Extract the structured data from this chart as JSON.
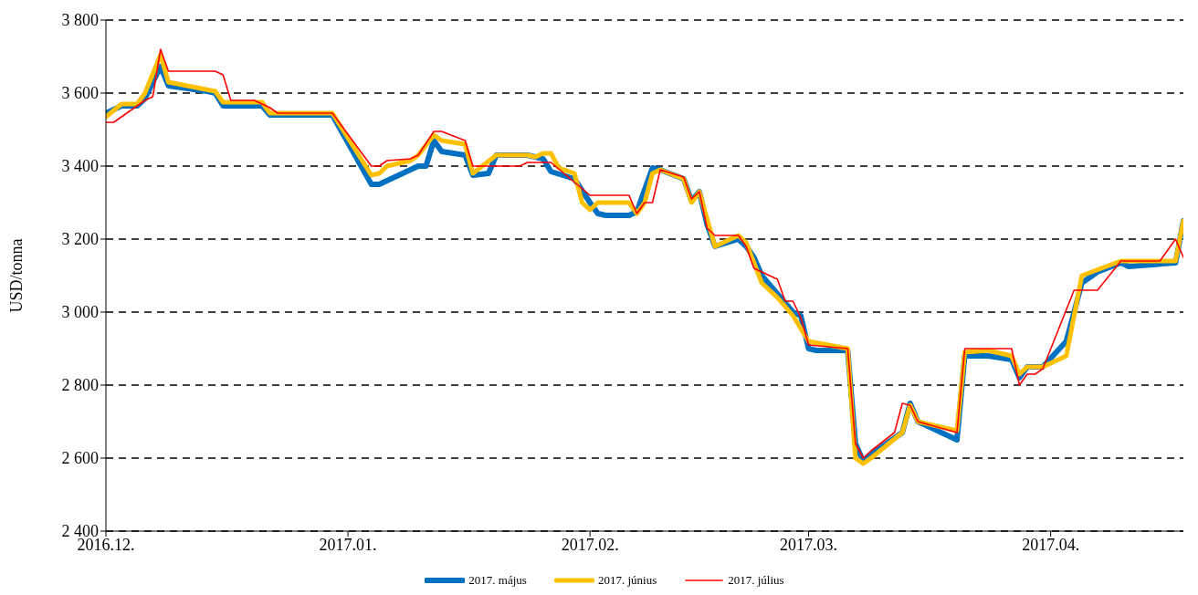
{
  "chart_data": {
    "type": "line",
    "ylabel": "USD/tonna",
    "xlim": [
      "2016-12-01",
      "2017-04-18"
    ],
    "xticks": [
      {
        "value": "2016-12-01",
        "label": "2016.12."
      },
      {
        "value": "2017-01-01",
        "label": "2017.01."
      },
      {
        "value": "2017-02-01",
        "label": "2017.02."
      },
      {
        "value": "2017-03-01",
        "label": "2017.03."
      },
      {
        "value": "2017-04-01",
        "label": "2017.04."
      }
    ],
    "ylim": [
      2400,
      3800
    ],
    "yticks": [
      {
        "value": 2400,
        "label": "2 400"
      },
      {
        "value": 2600,
        "label": "2 600"
      },
      {
        "value": 2800,
        "label": "2 800"
      },
      {
        "value": 3000,
        "label": "3 000"
      },
      {
        "value": 3200,
        "label": "3 200"
      },
      {
        "value": 3400,
        "label": "3 400"
      },
      {
        "value": 3600,
        "label": "3 600"
      },
      {
        "value": 3800,
        "label": "3 800"
      }
    ],
    "grid": "y",
    "legend": "bottom",
    "marker": "none",
    "series": [
      {
        "name": "2017. május",
        "color": "#0070c0",
        "x": [
          "2016-12-01",
          "2016-12-03",
          "2016-12-05",
          "2016-12-06",
          "2016-12-08",
          "2016-12-09",
          "2016-12-14",
          "2016-12-15",
          "2016-12-16",
          "2016-12-21",
          "2016-12-22",
          "2016-12-30",
          "2017-01-04",
          "2017-01-05",
          "2017-01-07",
          "2017-01-10",
          "2017-01-11",
          "2017-01-12",
          "2017-01-13",
          "2017-01-16",
          "2017-01-17",
          "2017-01-19",
          "2017-01-20",
          "2017-01-24",
          "2017-01-26",
          "2017-01-27",
          "2017-01-30",
          "2017-02-01",
          "2017-02-02",
          "2017-02-03",
          "2017-02-06",
          "2017-02-07",
          "2017-02-09",
          "2017-02-10",
          "2017-02-13",
          "2017-02-14",
          "2017-02-15",
          "2017-02-16",
          "2017-02-17",
          "2017-02-20",
          "2017-02-21",
          "2017-02-22",
          "2017-02-23",
          "2017-02-25",
          "2017-02-27",
          "2017-02-28",
          "2017-03-01",
          "2017-03-02",
          "2017-03-06",
          "2017-03-07",
          "2017-03-08",
          "2017-03-09",
          "2017-03-13",
          "2017-03-14",
          "2017-03-15",
          "2017-03-20",
          "2017-03-21",
          "2017-03-24",
          "2017-03-27",
          "2017-03-28",
          "2017-03-29",
          "2017-03-31",
          "2017-04-03",
          "2017-04-05",
          "2017-04-07",
          "2017-04-10",
          "2017-04-11",
          "2017-04-17",
          "2017-04-18"
        ],
        "values": [
          3545,
          3565,
          3565,
          3585,
          3673,
          3620,
          3605,
          3600,
          3565,
          3565,
          3540,
          3540,
          3350,
          3350,
          3370,
          3400,
          3400,
          3470,
          3440,
          3430,
          3375,
          3380,
          3430,
          3430,
          3420,
          3385,
          3365,
          3300,
          3270,
          3265,
          3265,
          3275,
          3395,
          3390,
          3365,
          3305,
          3330,
          3240,
          3180,
          3200,
          3180,
          3150,
          3100,
          3050,
          3000,
          2990,
          2900,
          2895,
          2895,
          2640,
          2590,
          2610,
          2670,
          2750,
          2700,
          2650,
          2880,
          2880,
          2870,
          2820,
          2850,
          2850,
          2920,
          3080,
          3110,
          3135,
          3125,
          3135,
          3250
        ]
      },
      {
        "name": "2017. június",
        "color": "#ffc000",
        "x": [
          "2016-12-01",
          "2016-12-03",
          "2016-12-05",
          "2016-12-06",
          "2016-12-08",
          "2016-12-09",
          "2016-12-15",
          "2016-12-16",
          "2016-12-21",
          "2016-12-22",
          "2016-12-30",
          "2017-01-04",
          "2017-01-05",
          "2017-01-06",
          "2017-01-09",
          "2017-01-10",
          "2017-01-12",
          "2017-01-13",
          "2017-01-16",
          "2017-01-17",
          "2017-01-20",
          "2017-01-24",
          "2017-01-25",
          "2017-01-26",
          "2017-01-27",
          "2017-01-28",
          "2017-01-30",
          "2017-01-31",
          "2017-02-01",
          "2017-02-02",
          "2017-02-06",
          "2017-02-07",
          "2017-02-08",
          "2017-02-09",
          "2017-02-10",
          "2017-02-13",
          "2017-02-14",
          "2017-02-15",
          "2017-02-17",
          "2017-02-20",
          "2017-02-21",
          "2017-02-23",
          "2017-02-25",
          "2017-02-27",
          "2017-03-01",
          "2017-03-06",
          "2017-03-07",
          "2017-03-08",
          "2017-03-09",
          "2017-03-13",
          "2017-03-14",
          "2017-03-15",
          "2017-03-20",
          "2017-03-21",
          "2017-03-24",
          "2017-03-27",
          "2017-03-28",
          "2017-03-29",
          "2017-03-31",
          "2017-04-03",
          "2017-04-05",
          "2017-04-10",
          "2017-04-17",
          "2017-04-18"
        ],
        "values": [
          3535,
          3570,
          3570,
          3600,
          3705,
          3630,
          3605,
          3575,
          3575,
          3545,
          3545,
          3375,
          3380,
          3400,
          3415,
          3430,
          3485,
          3470,
          3460,
          3380,
          3430,
          3430,
          3425,
          3435,
          3435,
          3395,
          3380,
          3300,
          3280,
          3300,
          3300,
          3270,
          3300,
          3380,
          3390,
          3365,
          3300,
          3330,
          3180,
          3210,
          3190,
          3080,
          3040,
          2990,
          2920,
          2900,
          2600,
          2585,
          2600,
          2670,
          2745,
          2700,
          2675,
          2890,
          2895,
          2880,
          2830,
          2850,
          2850,
          2880,
          3100,
          3140,
          3140,
          3250
        ]
      },
      {
        "name": "2017. július",
        "color": "#ff0000",
        "x": [
          "2016-12-01",
          "2016-12-02",
          "2016-12-06",
          "2016-12-07",
          "2016-12-08",
          "2016-12-09",
          "2016-12-15",
          "2016-12-16",
          "2016-12-17",
          "2016-12-20",
          "2016-12-21",
          "2016-12-22",
          "2016-12-23",
          "2016-12-30",
          "2017-01-04",
          "2017-01-05",
          "2017-01-06",
          "2017-01-09",
          "2017-01-10",
          "2017-01-12",
          "2017-01-13",
          "2017-01-16",
          "2017-01-17",
          "2017-01-23",
          "2017-01-24",
          "2017-01-27",
          "2017-02-01",
          "2017-02-06",
          "2017-02-07",
          "2017-02-08",
          "2017-02-09",
          "2017-02-10",
          "2017-02-13",
          "2017-02-14",
          "2017-02-15",
          "2017-02-16",
          "2017-02-17",
          "2017-02-20",
          "2017-02-21",
          "2017-02-22",
          "2017-02-25",
          "2017-02-26",
          "2017-02-27",
          "2017-02-28",
          "2017-03-01",
          "2017-03-06",
          "2017-03-07",
          "2017-03-08",
          "2017-03-09",
          "2017-03-12",
          "2017-03-13",
          "2017-03-14",
          "2017-03-15",
          "2017-03-20",
          "2017-03-21",
          "2017-03-27",
          "2017-03-28",
          "2017-03-29",
          "2017-03-30",
          "2017-03-31",
          "2017-04-04",
          "2017-04-07",
          "2017-04-10",
          "2017-04-15",
          "2017-04-17",
          "2017-04-18"
        ],
        "values": [
          3520,
          3520,
          3580,
          3590,
          3720,
          3660,
          3660,
          3650,
          3580,
          3580,
          3570,
          3560,
          3545,
          3545,
          3400,
          3400,
          3415,
          3420,
          3430,
          3495,
          3495,
          3470,
          3400,
          3400,
          3410,
          3410,
          3320,
          3320,
          3270,
          3300,
          3300,
          3390,
          3370,
          3310,
          3330,
          3230,
          3210,
          3210,
          3180,
          3120,
          3090,
          3030,
          3030,
          2985,
          2910,
          2900,
          2640,
          2600,
          2620,
          2670,
          2750,
          2745,
          2700,
          2670,
          2900,
          2900,
          2800,
          2830,
          2830,
          2845,
          3060,
          3060,
          3140,
          3140,
          3200,
          3150
        ]
      }
    ]
  }
}
